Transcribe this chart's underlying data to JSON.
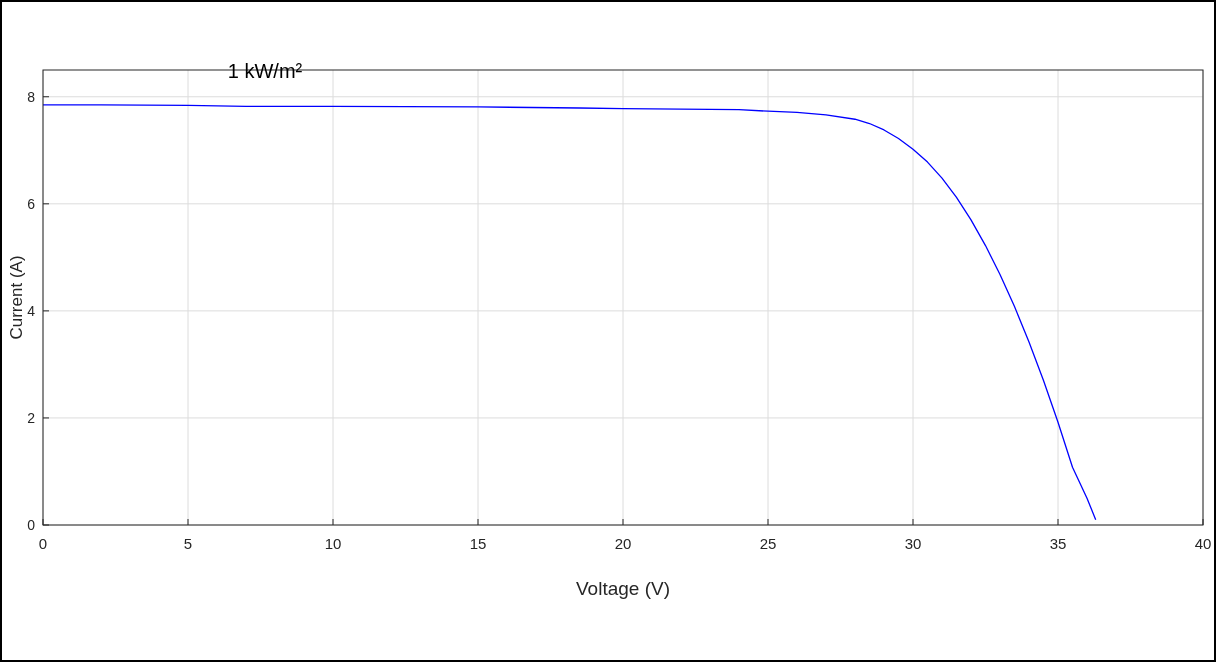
{
  "chart_data": {
    "type": "line",
    "xlabel": "Voltage (V)",
    "ylabel": "Current (A)",
    "annotations": [
      "1 kW/m²"
    ],
    "x": [
      0,
      2,
      5,
      7,
      10,
      15,
      18.5,
      20,
      22,
      24,
      25,
      26,
      27,
      28,
      28.5,
      29,
      29.5,
      30,
      30.5,
      31,
      31.5,
      32,
      32.5,
      33,
      33.5,
      34,
      34.5,
      35,
      35.5,
      36,
      36.3
    ],
    "series": [
      {
        "color": "#0000ff",
        "values": [
          7.85,
          7.85,
          7.84,
          7.82,
          7.82,
          7.81,
          7.79,
          7.78,
          7.77,
          7.76,
          7.73,
          7.71,
          7.66,
          7.58,
          7.5,
          7.38,
          7.22,
          7.02,
          6.78,
          6.48,
          6.12,
          5.7,
          5.22,
          4.68,
          4.08,
          3.42,
          2.7,
          1.92,
          1.08,
          0.5,
          0.1
        ]
      }
    ],
    "xlim": [
      0,
      40
    ],
    "ylim": [
      0,
      8.5
    ],
    "xticks": [
      0,
      5,
      10,
      15,
      20,
      25,
      30,
      35,
      40
    ],
    "yticks": [
      0,
      2,
      4,
      6,
      8
    ],
    "grid": true,
    "marker": "none",
    "line_style": "solid"
  }
}
